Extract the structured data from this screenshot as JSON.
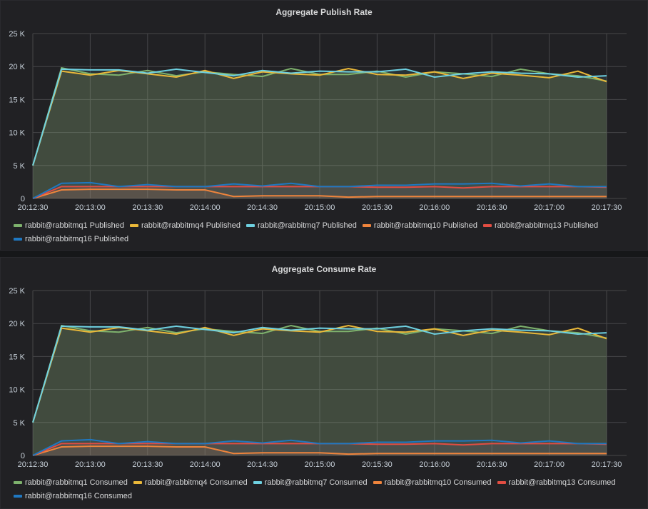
{
  "colors": [
    "#7eb26d",
    "#eab839",
    "#6ed0e0",
    "#ef843c",
    "#e24d42",
    "#1f78c1"
  ],
  "chart_data": [
    {
      "type": "area",
      "title": "Aggregate Publish Rate",
      "ylim": [
        0,
        25000
      ],
      "yticks": [
        "0",
        "5 K",
        "10 K",
        "15 K",
        "20 K",
        "25 K"
      ],
      "xticks": [
        "20:12:30",
        "20:13:00",
        "20:13:30",
        "20:14:00",
        "20:14:30",
        "20:15:00",
        "20:15:30",
        "20:16:00",
        "20:16:30",
        "20:17:00",
        "20:17:30"
      ],
      "x_interval": "15s",
      "grid": true,
      "legend": "bottom",
      "series": [
        {
          "name": "rabbit@rabbitmq1 Published",
          "values": [
            5000,
            19800,
            18900,
            18700,
            19400,
            18600,
            19200,
            18800,
            18500,
            19700,
            18800,
            18800,
            19300,
            18400,
            19200,
            18900,
            18500,
            19600,
            18900,
            18600,
            17800
          ]
        },
        {
          "name": "rabbit@rabbitmq4 Published",
          "values": [
            5000,
            19300,
            18700,
            19400,
            18900,
            18400,
            19400,
            18200,
            19200,
            18900,
            18700,
            19700,
            18800,
            18700,
            19200,
            18200,
            19000,
            18700,
            18300,
            19300,
            17700
          ]
        },
        {
          "name": "rabbit@rabbitmq7 Published",
          "values": [
            5000,
            19600,
            19500,
            19500,
            19000,
            19600,
            19100,
            18600,
            19400,
            19000,
            19300,
            19200,
            19200,
            19600,
            18400,
            18900,
            19200,
            19000,
            18900,
            18400,
            18600
          ]
        },
        {
          "name": "rabbit@rabbitmq10 Published",
          "values": [
            0,
            1300,
            1400,
            1400,
            1400,
            1300,
            1300,
            300,
            400,
            400,
            400,
            200,
            300,
            300,
            300,
            300,
            300,
            300,
            300,
            300,
            300
          ]
        },
        {
          "name": "rabbit@rabbitmq13 Published",
          "values": [
            0,
            1800,
            1800,
            1800,
            1800,
            1800,
            1800,
            1800,
            1800,
            1800,
            1800,
            1800,
            1700,
            1700,
            1800,
            1600,
            1800,
            1800,
            1800,
            1800,
            1700
          ]
        },
        {
          "name": "rabbit@rabbitmq16 Published",
          "values": [
            0,
            2300,
            2400,
            1800,
            2100,
            1800,
            1800,
            2200,
            1900,
            2300,
            1800,
            1800,
            2000,
            2000,
            2200,
            2200,
            2300,
            1900,
            2200,
            1800,
            1800
          ]
        }
      ]
    },
    {
      "type": "area",
      "title": "Aggregate Consume Rate",
      "ylim": [
        0,
        25000
      ],
      "yticks": [
        "0",
        "5 K",
        "10 K",
        "15 K",
        "20 K",
        "25 K"
      ],
      "xticks": [
        "20:12:30",
        "20:13:00",
        "20:13:30",
        "20:14:00",
        "20:14:30",
        "20:15:00",
        "20:15:30",
        "20:16:00",
        "20:16:30",
        "20:17:00",
        "20:17:30"
      ],
      "x_interval": "15s",
      "grid": true,
      "legend": "bottom",
      "series": [
        {
          "name": "rabbit@rabbitmq1 Consumed",
          "values": [
            5000,
            19700,
            18900,
            18700,
            19400,
            18600,
            19200,
            18800,
            18500,
            19700,
            18800,
            18800,
            19300,
            18400,
            19200,
            18900,
            18500,
            19600,
            18900,
            18600,
            17800
          ]
        },
        {
          "name": "rabbit@rabbitmq4 Consumed",
          "values": [
            5000,
            19300,
            18700,
            19400,
            18900,
            18400,
            19400,
            18200,
            19200,
            18900,
            18700,
            19700,
            18800,
            18700,
            19200,
            18200,
            19000,
            18700,
            18300,
            19300,
            17700
          ]
        },
        {
          "name": "rabbit@rabbitmq7 Consumed",
          "values": [
            5000,
            19600,
            19500,
            19500,
            19000,
            19600,
            19100,
            18600,
            19400,
            19000,
            19300,
            19200,
            19200,
            19600,
            18400,
            18900,
            19200,
            19000,
            18900,
            18400,
            18600
          ]
        },
        {
          "name": "rabbit@rabbitmq10 Consumed",
          "values": [
            0,
            1300,
            1400,
            1400,
            1400,
            1300,
            1300,
            300,
            400,
            400,
            400,
            200,
            300,
            300,
            300,
            300,
            300,
            300,
            300,
            300,
            300
          ]
        },
        {
          "name": "rabbit@rabbitmq13 Consumed",
          "values": [
            0,
            1800,
            1800,
            1800,
            1800,
            1800,
            1800,
            1800,
            1800,
            1800,
            1800,
            1800,
            1700,
            1700,
            1800,
            1600,
            1800,
            1800,
            1800,
            1800,
            1700
          ]
        },
        {
          "name": "rabbit@rabbitmq16 Consumed",
          "values": [
            0,
            2200,
            2400,
            1800,
            2100,
            1800,
            1800,
            2200,
            1900,
            2300,
            1800,
            1800,
            2000,
            2000,
            2200,
            2200,
            2300,
            1900,
            2200,
            1800,
            1800
          ]
        }
      ]
    }
  ]
}
